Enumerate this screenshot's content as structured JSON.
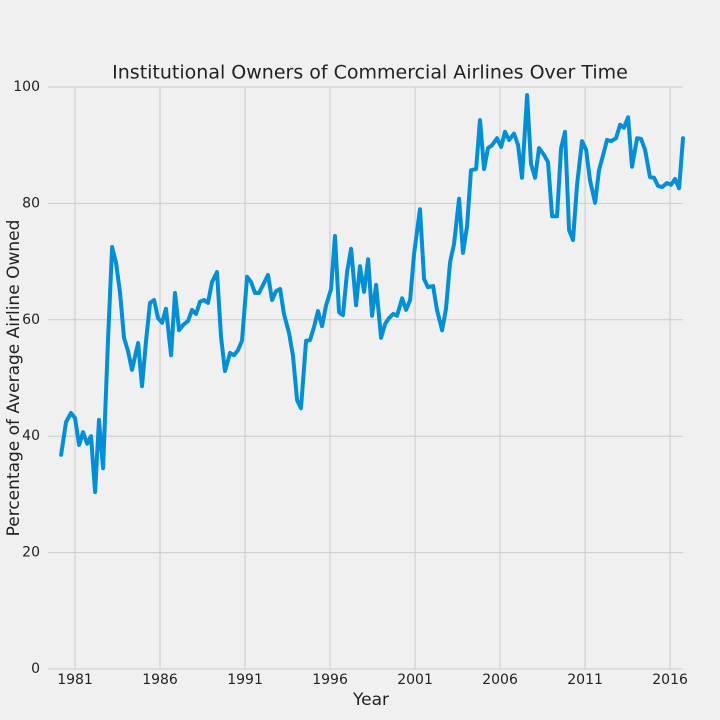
{
  "chart_data": {
    "type": "line",
    "title": "Institutional Owners of Commercial Airlines Over Time",
    "x_label": "Year",
    "y_label": "Percentage of Average Airline Owned",
    "xlim": [
      1979.41,
      2016.76
    ],
    "ylim": [
      0,
      100
    ],
    "xticks": [
      1981,
      1986,
      1991,
      1996,
      2001,
      2006,
      2011,
      2016
    ],
    "yticks": [
      0,
      20,
      40,
      60,
      80,
      100
    ],
    "grid": true,
    "x": [
      1980.18,
      1980.47,
      1980.76,
      1981.0,
      1981.24,
      1981.47,
      1981.71,
      1981.94,
      1982.18,
      1982.41,
      1982.65,
      1982.94,
      1983.18,
      1983.41,
      1983.65,
      1983.88,
      1984.12,
      1984.35,
      1984.71,
      1984.94,
      1985.18,
      1985.41,
      1985.65,
      1985.88,
      1986.12,
      1986.35,
      1986.65,
      1986.88,
      1987.12,
      1987.35,
      1987.65,
      1987.88,
      1988.12,
      1988.35,
      1988.59,
      1988.82,
      1989.06,
      1989.35,
      1989.59,
      1989.82,
      1990.12,
      1990.35,
      1990.59,
      1990.82,
      1991.12,
      1991.35,
      1991.59,
      1991.82,
      1992.06,
      1992.35,
      1992.59,
      1992.82,
      1993.06,
      1993.29,
      1993.59,
      1993.82,
      1994.06,
      1994.29,
      1994.59,
      1994.82,
      1995.06,
      1995.29,
      1995.53,
      1995.76,
      1996.06,
      1996.29,
      1996.53,
      1996.76,
      1997.0,
      1997.24,
      1997.53,
      1997.76,
      1998.0,
      1998.24,
      1998.47,
      1998.71,
      1999.0,
      1999.24,
      1999.47,
      1999.71,
      1999.94,
      2000.24,
      2000.47,
      2000.71,
      2000.94,
      2001.29,
      2001.53,
      2001.76,
      2002.06,
      2002.29,
      2002.59,
      2002.82,
      2003.06,
      2003.29,
      2003.59,
      2003.82,
      2004.06,
      2004.29,
      2004.59,
      2004.82,
      2005.06,
      2005.29,
      2005.53,
      2005.82,
      2006.06,
      2006.29,
      2006.53,
      2006.82,
      2007.06,
      2007.29,
      2007.59,
      2007.82,
      2008.06,
      2008.29,
      2008.59,
      2008.82,
      2009.06,
      2009.35,
      2009.59,
      2009.82,
      2010.06,
      2010.29,
      2010.53,
      2010.82,
      2011.06,
      2011.29,
      2011.59,
      2011.82,
      2012.06,
      2012.29,
      2012.53,
      2012.82,
      2013.06,
      2013.29,
      2013.53,
      2013.76,
      2014.06,
      2014.29,
      2014.53,
      2014.82,
      2015.06,
      2015.29,
      2015.53,
      2015.82,
      2016.06,
      2016.29,
      2016.53,
      2016.76
    ],
    "series": [
      {
        "color": "#008fd5",
        "values": [
          36.8,
          42.4,
          44.0,
          43.1,
          38.5,
          40.7,
          38.7,
          40.0,
          30.4,
          42.8,
          34.5,
          56.5,
          72.5,
          69.8,
          64.6,
          56.9,
          54.6,
          51.4,
          56.0,
          48.6,
          56.5,
          62.9,
          63.4,
          60.3,
          59.5,
          61.9,
          53.9,
          64.6,
          58.2,
          59.1,
          59.8,
          61.7,
          61.0,
          63.1,
          63.4,
          62.9,
          66.5,
          68.2,
          57.0,
          51.2,
          54.3,
          53.9,
          54.8,
          56.4,
          67.4,
          66.5,
          64.6,
          64.6,
          66.0,
          67.7,
          63.4,
          64.9,
          65.3,
          61.0,
          57.7,
          53.8,
          46.2,
          44.8,
          56.4,
          56.5,
          58.8,
          61.5,
          58.9,
          62.4,
          65.3,
          74.4,
          61.3,
          60.8,
          68.2,
          72.2,
          62.5,
          69.2,
          64.8,
          70.4,
          60.7,
          66.0,
          56.9,
          59.3,
          60.3,
          61.0,
          60.7,
          63.7,
          61.7,
          63.4,
          71.3,
          79.0,
          67.0,
          65.6,
          65.8,
          61.7,
          58.2,
          61.9,
          69.9,
          73.0,
          80.8,
          71.5,
          76.1,
          85.7,
          85.9,
          94.3,
          85.9,
          89.5,
          90.0,
          91.2,
          89.7,
          92.3,
          90.9,
          92.0,
          90.0,
          84.4,
          98.6,
          86.8,
          84.4,
          89.5,
          88.3,
          87.1,
          77.8,
          77.8,
          89.5,
          92.3,
          75.4,
          73.7,
          83.2,
          90.7,
          89.2,
          84.0,
          80.1,
          85.7,
          88.3,
          90.9,
          90.7,
          91.2,
          93.5,
          93.0,
          94.8,
          86.3,
          91.2,
          91.1,
          89.2,
          84.5,
          84.4,
          83.0,
          82.8,
          83.5,
          83.2,
          84.2,
          82.6,
          91.2
        ]
      }
    ]
  }
}
